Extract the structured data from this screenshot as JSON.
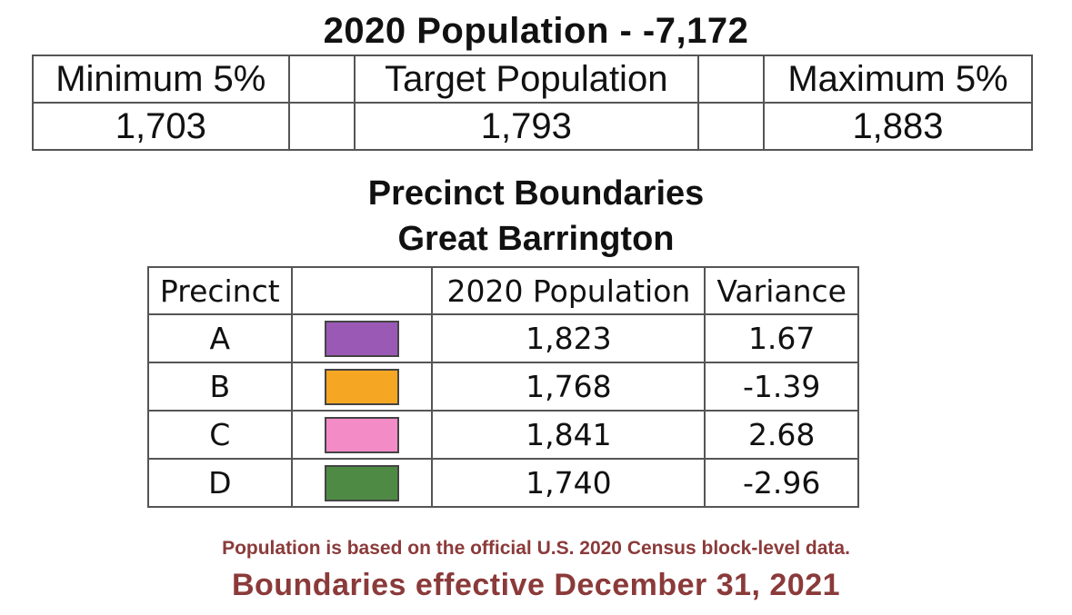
{
  "title": "2020 Population - -7,172",
  "population_range": {
    "minimum_label": "Minimum 5%",
    "target_label": "Target Population",
    "maximum_label": "Maximum 5%",
    "minimum_value": "1,703",
    "target_value": "1,793",
    "maximum_value": "1,883"
  },
  "heading": {
    "line1": "Precinct Boundaries",
    "line2": "Great Barrington"
  },
  "precinct_table": {
    "headers": {
      "precinct": "Precinct",
      "swatch": "",
      "population": "2020 Population",
      "variance": "Variance"
    },
    "rows": [
      {
        "precinct": "A",
        "color": "#9b59b6",
        "population": "1,823",
        "variance": "1.67"
      },
      {
        "precinct": "B",
        "color": "#f5a623",
        "population": "1,768",
        "variance": "-1.39"
      },
      {
        "precinct": "C",
        "color": "#f38bc7",
        "population": "1,841",
        "variance": "2.68"
      },
      {
        "precinct": "D",
        "color": "#4e8a43",
        "population": "1,740",
        "variance": "-2.96"
      }
    ]
  },
  "footer": {
    "source_note": "Population is based on the official U.S. 2020 Census block-level data.",
    "effective_note": "Boundaries effective December 31, 2021"
  }
}
